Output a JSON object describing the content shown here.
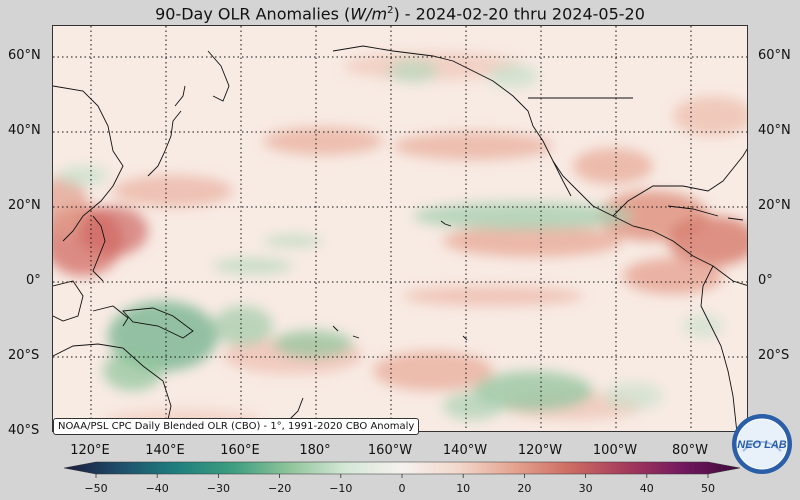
{
  "title": {
    "prefix": "90-Day OLR Anomalies (",
    "unit_main": "W/m",
    "unit_exp": "2",
    "suffix": ") - 2024-02-20 thru 2024-05-20"
  },
  "credit": "NOAA/PSL CPC Daily Blended OLR (CBO) - 1°, 1991-2020 CBO Anomaly",
  "lat_labels": [
    "60°N",
    "40°N",
    "20°N",
    "0°",
    "20°S",
    "40°S"
  ],
  "lon_labels": [
    "120°E",
    "140°E",
    "160°E",
    "180°",
    "160°W",
    "140°W",
    "120°W",
    "100°W",
    "80°W"
  ],
  "colorbar": {
    "ticks": [
      "−50",
      "−40",
      "−30",
      "−20",
      "−10",
      "0",
      "10",
      "20",
      "30",
      "40",
      "50"
    ],
    "min": -50,
    "max": 50,
    "colors": [
      "#1b1a3c",
      "#1f4e6b",
      "#1e7f7f",
      "#3e9e7f",
      "#8fc49b",
      "#d4e8d6",
      "#f6f1ee",
      "#f2d8cc",
      "#e4a38f",
      "#cc6b62",
      "#a43a5c",
      "#72185e",
      "#3d0b3a"
    ]
  },
  "logo": {
    "text": "NEO LAB",
    "colors": {
      "ring": "#2a5ea8",
      "inner": "#e8f0fa",
      "text": "#2a5ea8"
    }
  }
}
